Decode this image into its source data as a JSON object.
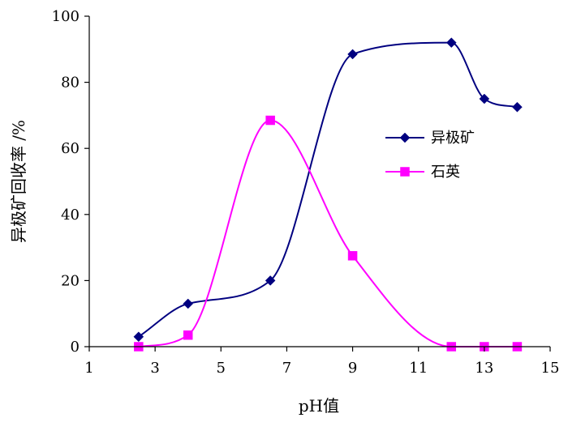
{
  "chart_data": {
    "type": "line",
    "title": "",
    "xlabel": "pH值",
    "ylabel": "异极矿回收率 /%",
    "xlim": [
      1,
      15
    ],
    "ylim": [
      0,
      100
    ],
    "x_ticks": [
      1,
      3,
      5,
      7,
      9,
      11,
      13,
      15
    ],
    "y_ticks": [
      0,
      20,
      40,
      60,
      80,
      100
    ],
    "x_tick_labels": [
      "1",
      "3",
      "5",
      "7",
      "9",
      "11",
      "13",
      "15"
    ],
    "y_tick_labels": [
      "0",
      "20",
      "40",
      "60",
      "80",
      "100"
    ],
    "grid": false,
    "smooth": true,
    "legend_position": "right",
    "series": [
      {
        "name": "异极矿",
        "color": "#000080",
        "marker": "diamond",
        "x": [
          2.5,
          4,
          6.5,
          9,
          12,
          13,
          14
        ],
        "y": [
          3,
          13,
          20,
          88.5,
          92,
          75,
          72.5
        ]
      },
      {
        "name": "石英",
        "color": "#ff00ff",
        "marker": "square",
        "x": [
          2.5,
          4,
          6.5,
          9,
          12,
          13,
          14
        ],
        "y": [
          0,
          3.5,
          68.5,
          27.5,
          0,
          0,
          0
        ]
      }
    ]
  }
}
